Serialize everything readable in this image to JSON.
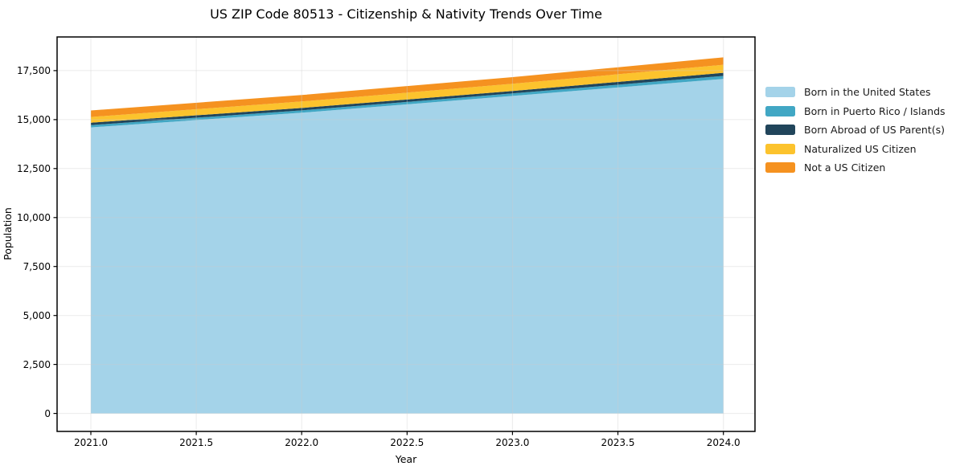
{
  "chart_data": {
    "type": "area",
    "stacked": true,
    "title": "US ZIP Code 80513 - Citizenship & Nativity Trends Over Time",
    "xlabel": "Year",
    "ylabel": "Population",
    "x": [
      2021,
      2022,
      2023,
      2024
    ],
    "series": [
      {
        "name": "Born in the United States",
        "color": "#a4d3e9",
        "values": [
          14600,
          15350,
          16210,
          17080
        ]
      },
      {
        "name": "Born in Puerto Rico / Islands",
        "color": "#41a7c4",
        "values": [
          120,
          120,
          125,
          150
        ]
      },
      {
        "name": "Born Abroad of US Parent(s)",
        "color": "#21455b",
        "values": [
          125,
          125,
          125,
          160
        ]
      },
      {
        "name": "Naturalized US Citizen",
        "color": "#fcc32d",
        "values": [
          290,
          330,
          370,
          410
        ]
      },
      {
        "name": "Not a US Citizen",
        "color": "#f59220",
        "values": [
          330,
          330,
          340,
          380
        ]
      }
    ],
    "totals": [
      15465,
      16255,
      17170,
      18180
    ],
    "xticks": [
      "2021.0",
      "2021.5",
      "2022.0",
      "2022.5",
      "2023.0",
      "2023.5",
      "2024.0"
    ],
    "xtick_values": [
      2021.0,
      2021.5,
      2022.0,
      2022.5,
      2023.0,
      2023.5,
      2024.0
    ],
    "yticks": [
      "0",
      "2,500",
      "5,000",
      "7,500",
      "10,000",
      "12,500",
      "15,000",
      "17,500"
    ],
    "ytick_values": [
      0,
      2500,
      5000,
      7500,
      10000,
      12500,
      15000,
      17500
    ],
    "xlim": [
      2020.84,
      2024.15
    ],
    "ylim": [
      -920,
      19220
    ],
    "grid": true,
    "legend_position": "outside-right",
    "colors": {
      "spine": "#000000",
      "grid": "#cccccc",
      "background": "#ffffff",
      "text": "#000000"
    }
  }
}
